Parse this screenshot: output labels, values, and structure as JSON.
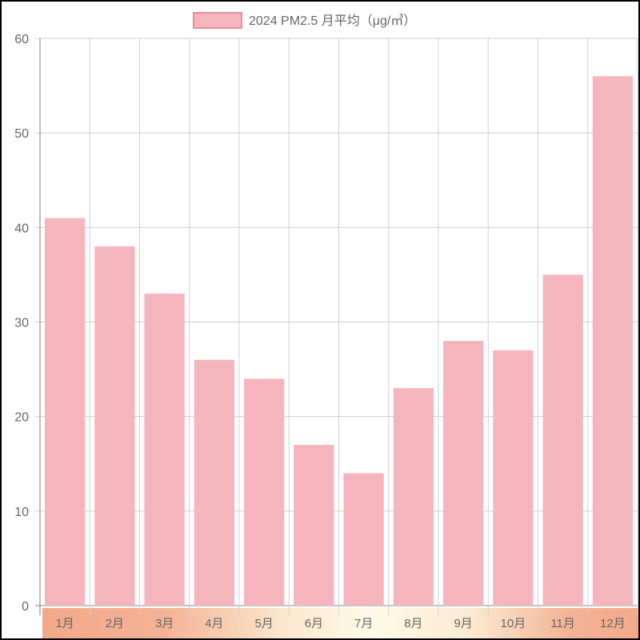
{
  "chart_data": {
    "type": "bar",
    "categories": [
      "1月",
      "2月",
      "3月",
      "4月",
      "5月",
      "6月",
      "7月",
      "8月",
      "9月",
      "10月",
      "11月",
      "12月"
    ],
    "series": [
      {
        "name": "2024 PM2.5 月平均（μg/㎥）",
        "values": [
          41,
          38,
          33,
          26,
          24,
          17,
          14,
          23,
          28,
          27,
          35,
          56
        ]
      }
    ],
    "ylim": [
      0,
      60
    ],
    "yticks": [
      0,
      10,
      20,
      30,
      40,
      50,
      60
    ],
    "grid": true,
    "legend": "top-center",
    "colors": {
      "bar": "#f5b5bd",
      "legend_border": "#f08a9a",
      "grid": "#d0d0d0",
      "tick_text": "#666666"
    }
  }
}
